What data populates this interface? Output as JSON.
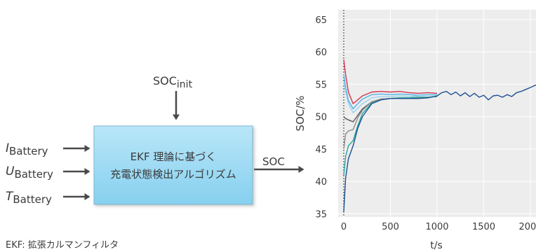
{
  "block_diagram": {
    "inputs": [
      {
        "symbol": "I",
        "subscript": "Battery"
      },
      {
        "symbol": "U",
        "subscript": "Battery"
      },
      {
        "symbol": "T",
        "subscript": "Battery"
      }
    ],
    "init_input": {
      "main": "SOC",
      "subscript": "init"
    },
    "block_text": [
      "EKF 理論に基づく",
      "充電状態検出アルゴリズム"
    ],
    "output": "SOC",
    "footnote": "EKF: 拡張カルマンフィルタ"
  },
  "chart_data": {
    "type": "line",
    "xlabel": "t/s",
    "ylabel": "SOC/%",
    "xlim": [
      -60,
      2060
    ],
    "ylim": [
      34.5,
      66.5
    ],
    "xticks": [
      0,
      500,
      1000,
      1500,
      2000
    ],
    "yticks": [
      35,
      40,
      45,
      50,
      55,
      60,
      65
    ],
    "grid": true,
    "background": "#ededed",
    "vertical_marker_x": 0,
    "series": [
      {
        "color": "#d2344f",
        "x": [
          0,
          20,
          50,
          100,
          150,
          200,
          300,
          400,
          500,
          600,
          700,
          800,
          900,
          1000
        ],
        "y": [
          58.8,
          56.5,
          53.8,
          52.0,
          52.6,
          53.2,
          53.8,
          53.9,
          53.8,
          53.9,
          53.7,
          53.6,
          53.7,
          53.6
        ]
      },
      {
        "color": "#4bb6e6",
        "x": [
          0,
          20,
          50,
          100,
          150,
          200,
          300,
          400,
          500,
          600,
          700,
          800,
          900,
          1000
        ],
        "y": [
          56.5,
          54.5,
          52.5,
          51.2,
          52.0,
          52.7,
          53.4,
          53.5,
          53.4,
          53.5,
          53.4,
          53.3,
          53.4,
          53.4
        ]
      },
      {
        "color": "#9cd2ee",
        "x": [
          0,
          20,
          50,
          100,
          150,
          200,
          300,
          400,
          500,
          600,
          700,
          800,
          900,
          1000
        ],
        "y": [
          55.2,
          53.8,
          52.0,
          50.6,
          51.3,
          52.0,
          52.9,
          53.1,
          53.1,
          53.2,
          53.1,
          53.2,
          53.3,
          53.3
        ]
      },
      {
        "color": "#555555",
        "x": [
          0,
          20,
          50,
          100,
          150,
          200,
          300,
          400,
          500,
          600,
          700,
          800,
          900,
          1000
        ],
        "y": [
          50.0,
          49.7,
          49.5,
          49.2,
          50.2,
          51.2,
          52.3,
          52.7,
          52.8,
          52.9,
          52.9,
          53.0,
          53.0,
          53.1
        ]
      },
      {
        "color": "#8a8a8a",
        "x": [
          0,
          20,
          50,
          100,
          150,
          200,
          300,
          400,
          500,
          600,
          700,
          800,
          900,
          1000
        ],
        "y": [
          45.0,
          47.3,
          47.8,
          48.0,
          49.8,
          51.0,
          52.3,
          52.7,
          52.8,
          52.9,
          52.9,
          53.0,
          53.0,
          53.1
        ]
      },
      {
        "color": "#27a89c",
        "x": [
          0,
          20,
          50,
          100,
          150,
          200,
          300,
          400,
          500,
          600,
          700,
          800,
          900,
          1000
        ],
        "y": [
          41.0,
          43.8,
          45.5,
          46.3,
          48.6,
          50.5,
          52.1,
          52.6,
          52.8,
          52.9,
          52.9,
          53.0,
          53.0,
          53.1
        ]
      },
      {
        "color": "#1d4f91",
        "x": [
          0,
          20,
          50,
          100,
          150,
          200,
          300,
          400,
          500,
          600,
          700,
          800,
          900,
          1000,
          1050,
          1100,
          1150,
          1200,
          1250,
          1300,
          1350,
          1400,
          1450,
          1500,
          1550,
          1600,
          1650,
          1700,
          1750,
          1800,
          1850,
          1900,
          1950,
          2000,
          2060
        ],
        "y": [
          35.3,
          40.5,
          43.5,
          45.5,
          48.2,
          50.0,
          52.0,
          52.6,
          52.8,
          52.8,
          52.8,
          52.8,
          52.9,
          53.2,
          53.7,
          53.9,
          53.4,
          53.8,
          53.2,
          53.7,
          53.1,
          53.6,
          53.0,
          53.3,
          52.6,
          53.2,
          53.3,
          53.0,
          53.4,
          53.1,
          53.7,
          53.9,
          54.2,
          54.5,
          54.9
        ]
      }
    ]
  }
}
